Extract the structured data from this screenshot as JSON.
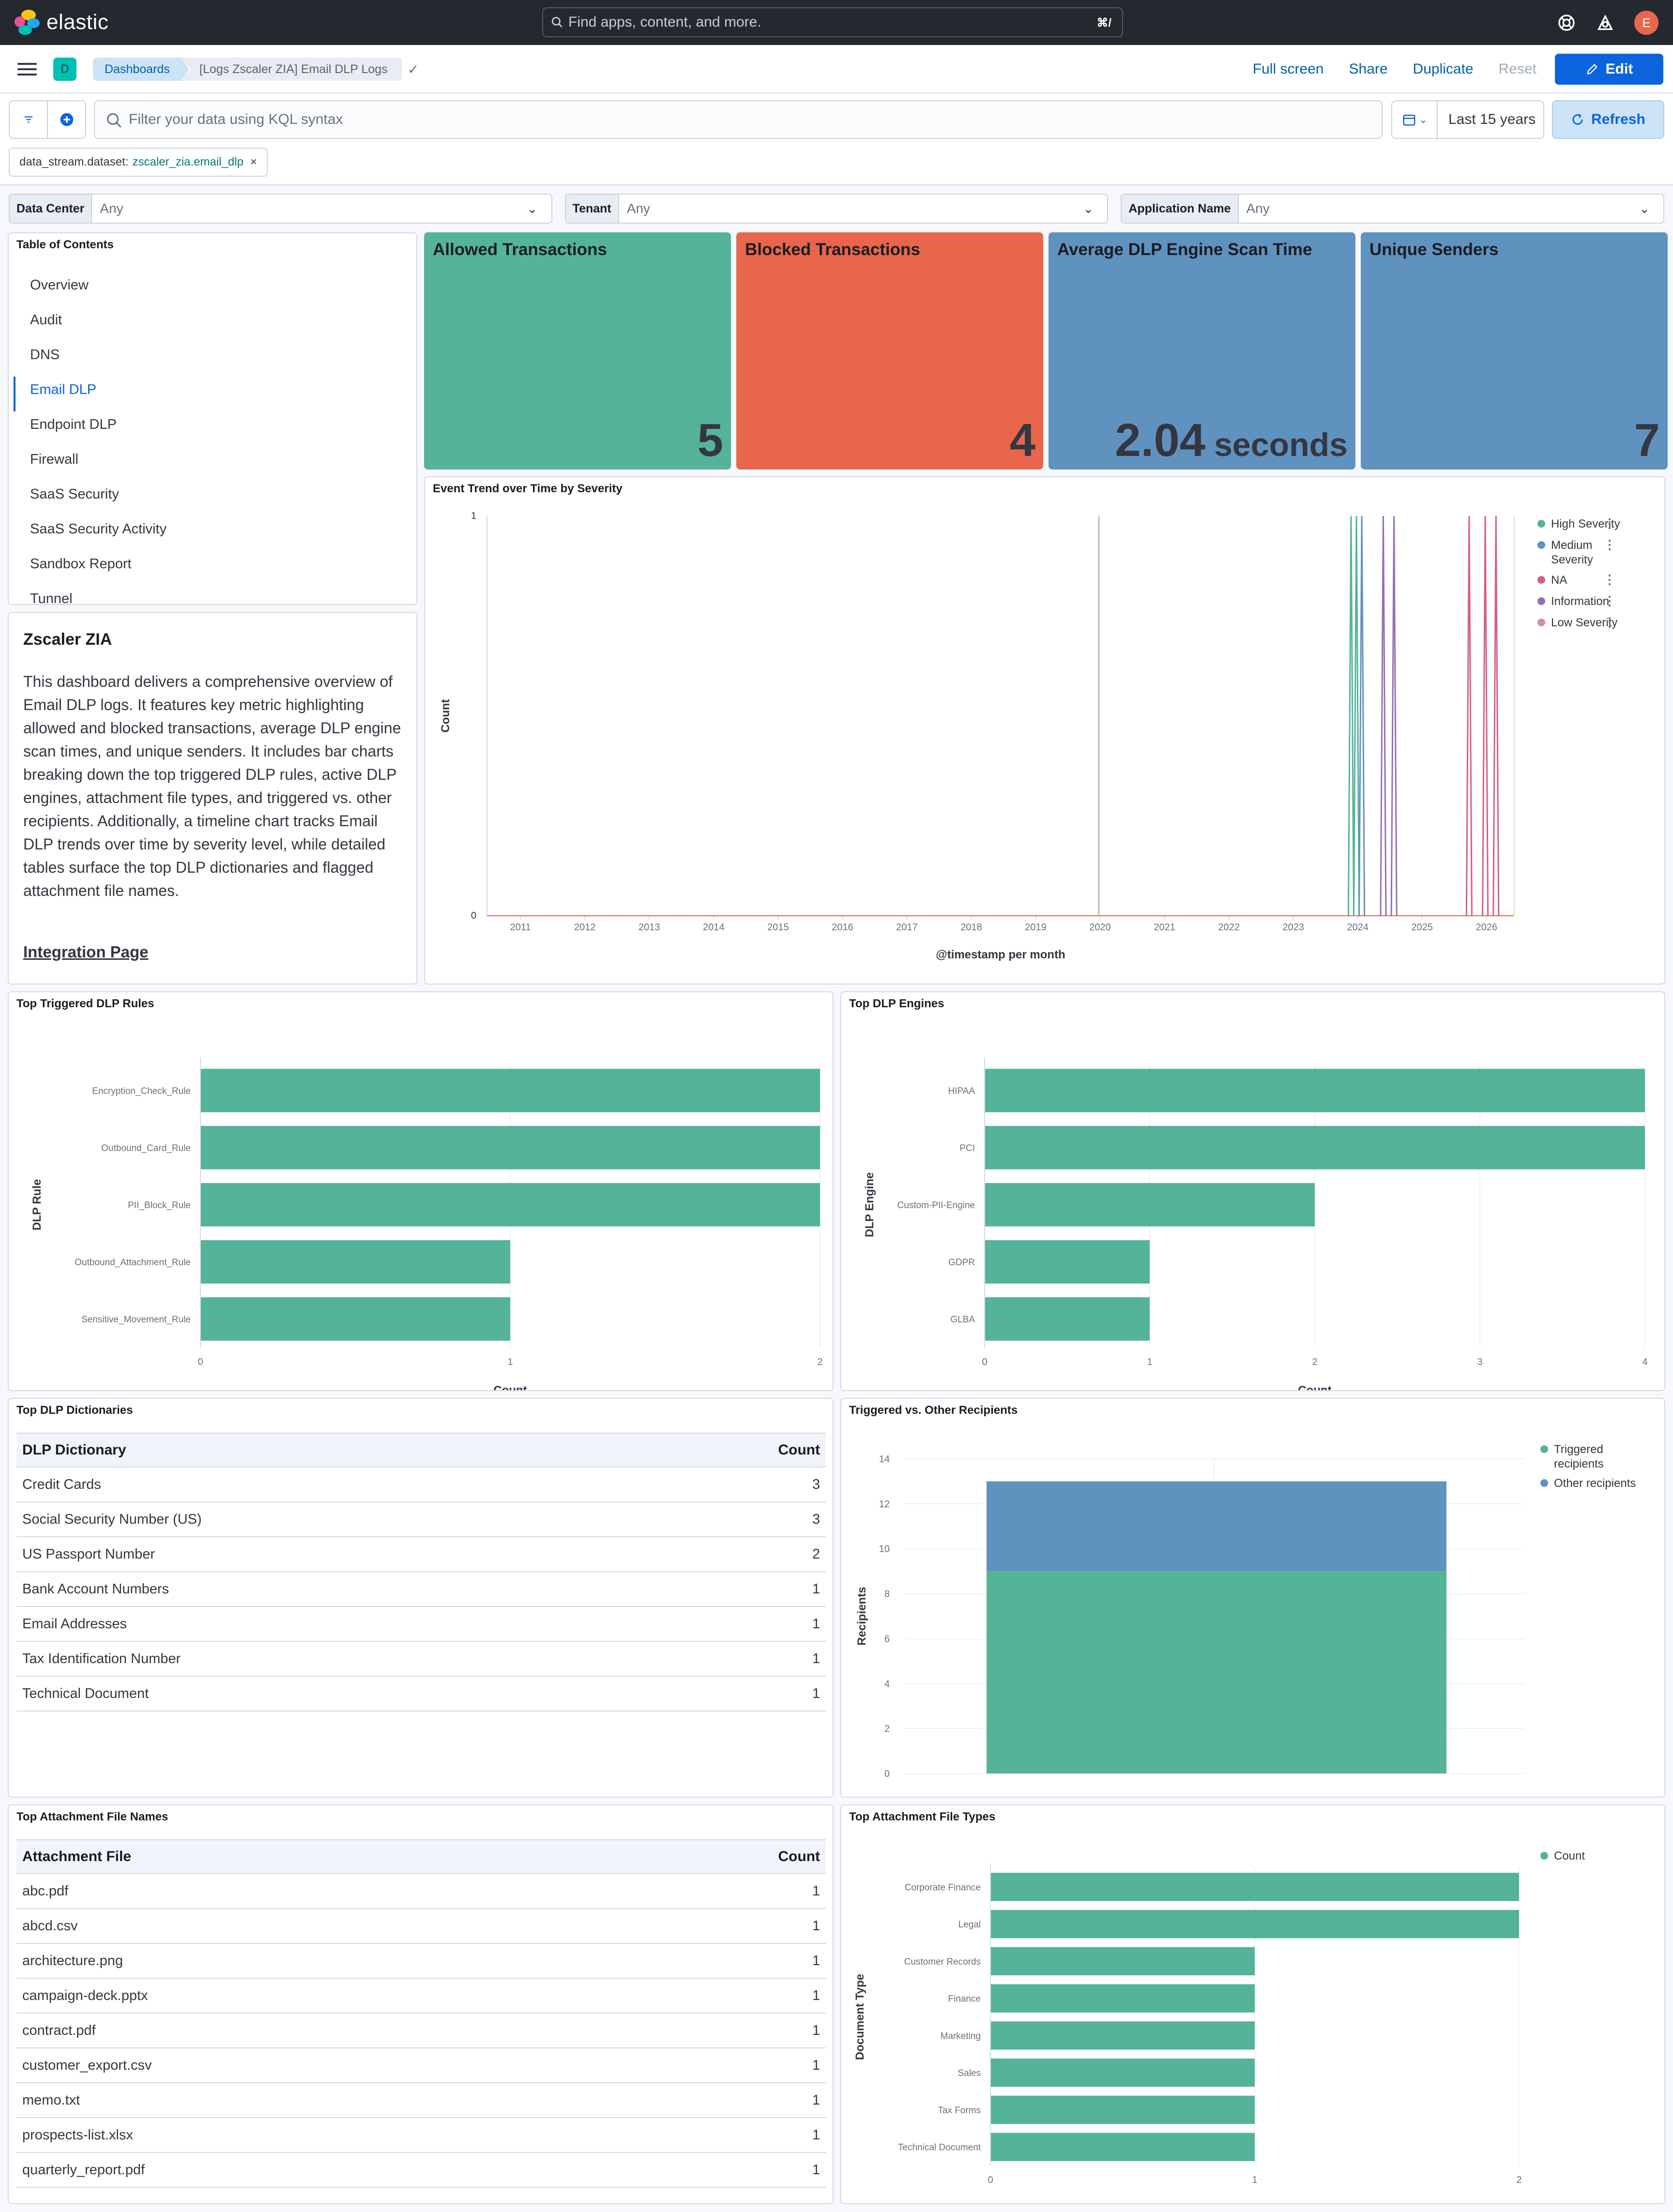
{
  "topbar": {
    "brand": "elastic",
    "search_placeholder": "Find apps, content, and more.",
    "search_shortcut": "⌘/",
    "avatar_initial": "E"
  },
  "nav": {
    "space_initial": "D",
    "breadcrumbs": [
      "Dashboards",
      "[Logs Zscaler ZIA] Email DLP Logs"
    ],
    "links": {
      "full_screen": "Full screen",
      "share": "Share",
      "duplicate": "Duplicate",
      "reset": "Reset",
      "edit": "Edit"
    }
  },
  "query": {
    "placeholder": "Filter your data using KQL syntax",
    "time_range": "Last 15 years",
    "refresh": "Refresh",
    "filter_pill": {
      "field": "data_stream.dataset:",
      "value": "zscaler_zia.email_dlp"
    }
  },
  "controls": [
    {
      "label": "Data Center",
      "value": "Any"
    },
    {
      "label": "Tenant",
      "value": "Any"
    },
    {
      "label": "Application Name",
      "value": "Any"
    }
  ],
  "toc": {
    "title": "Table of Contents",
    "items": [
      "Overview",
      "Audit",
      "DNS",
      "Email DLP",
      "Endpoint DLP",
      "Firewall",
      "SaaS Security",
      "SaaS Security Activity",
      "Sandbox Report",
      "Tunnel"
    ],
    "active": "Email DLP"
  },
  "description": {
    "heading": "Zscaler ZIA",
    "body": "This dashboard delivers a comprehensive overview of Email DLP logs. It features key metric highlighting allowed and blocked transactions, average DLP engine scan times, and unique senders. It includes bar charts breaking down the top triggered DLP rules, active DLP engines, attachment file types, and triggered vs. other recipients. Additionally, a timeline chart tracks Email DLP trends over time by severity level, while detailed tables surface the top DLP dictionaries and flagged attachment file names.",
    "link": "Integration Page"
  },
  "metrics": [
    {
      "title": "Allowed Transactions",
      "value": "5",
      "unit": "",
      "color": "#54b399"
    },
    {
      "title": "Blocked Transactions",
      "value": "4",
      "unit": "",
      "color": "#e7664c"
    },
    {
      "title": "Average DLP Engine Scan Time",
      "value": "2.04",
      "unit": "seconds",
      "color": "#6092c0"
    },
    {
      "title": "Unique Senders",
      "value": "7",
      "unit": "",
      "color": "#6092c0"
    }
  ],
  "panels": {
    "trend": "Event Trend over Time by Severity",
    "rules": "Top Triggered DLP Rules",
    "engines": "Top DLP Engines",
    "dictionaries": "Top DLP Dictionaries",
    "recipients": "Triggered vs. Other Recipients",
    "files": "Top Attachment File Names",
    "filetypes": "Top Attachment File Types"
  },
  "dictionaries": {
    "headers": [
      "DLP Dictionary",
      "Count"
    ],
    "rows": [
      [
        "Credit Cards",
        "3"
      ],
      [
        "Social Security Number (US)",
        "3"
      ],
      [
        "US Passport Number",
        "2"
      ],
      [
        "Bank Account Numbers",
        "1"
      ],
      [
        "Email Addresses",
        "1"
      ],
      [
        "Tax Identification Number",
        "1"
      ],
      [
        "Technical Document",
        "1"
      ]
    ]
  },
  "files": {
    "headers": [
      "Attachment File",
      "Count"
    ],
    "rows": [
      [
        "abc.pdf",
        "1"
      ],
      [
        "abcd.csv",
        "1"
      ],
      [
        "architecture.png",
        "1"
      ],
      [
        "campaign-deck.pptx",
        "1"
      ],
      [
        "contract.pdf",
        "1"
      ],
      [
        "customer_export.csv",
        "1"
      ],
      [
        "memo.txt",
        "1"
      ],
      [
        "prospects-list.xlsx",
        "1"
      ],
      [
        "quarterly_report.pdf",
        "1"
      ]
    ]
  },
  "chart_data": [
    {
      "id": "trend",
      "type": "line",
      "title": "Event Trend over Time by Severity",
      "xlabel": "@timestamp per month",
      "ylabel": "Count",
      "ylim": [
        0,
        1
      ],
      "x_ticks": [
        "2011",
        "2012",
        "2013",
        "2014",
        "2015",
        "2016",
        "2017",
        "2018",
        "2019",
        "2020",
        "2021",
        "2022",
        "2023",
        "2024",
        "2025",
        "2026"
      ],
      "series": [
        {
          "name": "High Severity",
          "color": "#54b399",
          "spikes": [
            "2023-12",
            "2024-01"
          ]
        },
        {
          "name": "Medium Severity",
          "color": "#6092c0",
          "spikes": [
            "2024-02"
          ]
        },
        {
          "name": "NA",
          "color": "#d36086",
          "spikes": [
            "2025-10",
            "2026-01",
            "2026-03"
          ]
        },
        {
          "name": "Information",
          "color": "#9170b8",
          "spikes": [
            "2024-06",
            "2024-08"
          ]
        },
        {
          "name": "Low Severity",
          "color": "#ca8eae",
          "spikes": []
        }
      ],
      "legend": "right"
    },
    {
      "id": "rules",
      "type": "bar",
      "orientation": "horizontal",
      "title": "Top Triggered DLP Rules",
      "ylabel": "DLP Rule",
      "xlabel": "Count",
      "xlim": [
        0,
        2
      ],
      "x_ticks": [
        "0",
        "1",
        "2"
      ],
      "categories": [
        "Encryption_Check_Rule",
        "Outbound_Card_Rule",
        "PII_Block_Rule",
        "Outbound_Attachment_Rule",
        "Sensitive_Movement_Rule"
      ],
      "values": [
        2,
        2,
        2,
        1,
        1
      ],
      "color": "#54b399"
    },
    {
      "id": "engines",
      "type": "bar",
      "orientation": "horizontal",
      "title": "Top DLP Engines",
      "ylabel": "DLP Engine",
      "xlabel": "Count",
      "xlim": [
        0,
        4
      ],
      "x_ticks": [
        "0",
        "1",
        "2",
        "3",
        "4"
      ],
      "categories": [
        "HIPAA",
        "PCI",
        "Custom-PII-Engine",
        "GDPR",
        "GLBA"
      ],
      "values": [
        4,
        4,
        2,
        1,
        1
      ],
      "color": "#54b399"
    },
    {
      "id": "recipients",
      "type": "bar",
      "orientation": "vertical",
      "stacked": true,
      "title": "Triggered vs. Other Recipients",
      "ylabel": "Recipients",
      "ylim": [
        0,
        14
      ],
      "y_ticks": [
        "0",
        "2",
        "4",
        "6",
        "8",
        "10",
        "12",
        "14"
      ],
      "series": [
        {
          "name": "Triggered recipients",
          "value": 9,
          "color": "#54b399"
        },
        {
          "name": "Other recipients",
          "value": 4,
          "color": "#6092c0"
        }
      ],
      "legend": "right"
    },
    {
      "id": "filetypes",
      "type": "bar",
      "orientation": "horizontal",
      "title": "Top Attachment File Types",
      "ylabel": "Document Type",
      "xlabel": "Count",
      "xlim": [
        0,
        2
      ],
      "x_ticks": [
        "0",
        "1",
        "2"
      ],
      "categories": [
        "Corporate Finance",
        "Legal",
        "Customer Records",
        "Finance",
        "Marketing",
        "Sales",
        "Tax Forms",
        "Technical Document"
      ],
      "values": [
        2,
        2,
        1,
        1,
        1,
        1,
        1,
        1
      ],
      "color": "#54b399",
      "series_name": "Count",
      "legend": "right"
    }
  ]
}
